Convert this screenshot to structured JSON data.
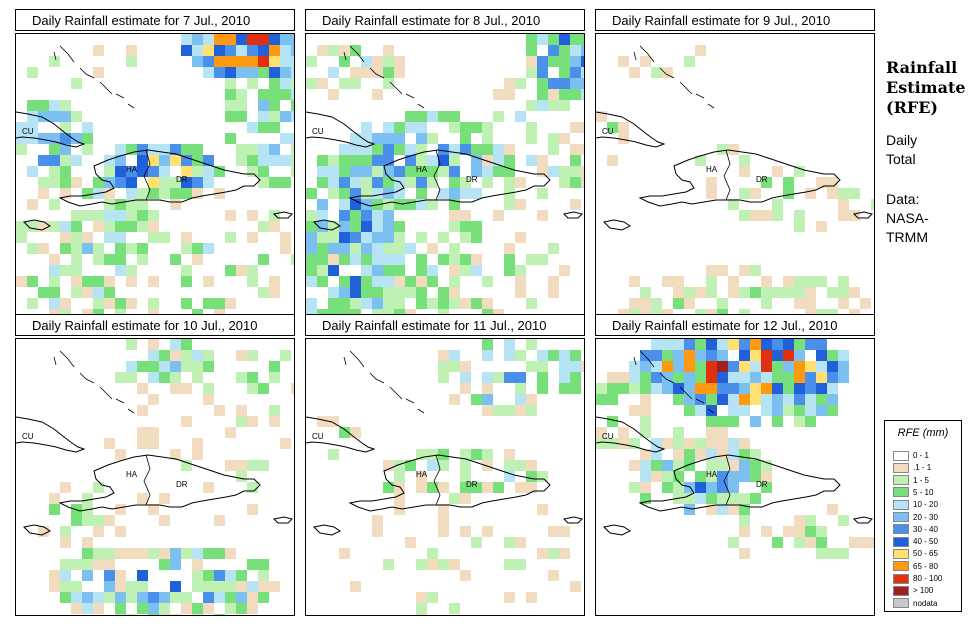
{
  "panels": [
    {
      "title": "Daily Rainfall estimate for  7 Jul., 2010",
      "labels": [
        "CU",
        "HA",
        "DR"
      ],
      "pattern": "d7"
    },
    {
      "title": "Daily Rainfall estimate for  8 Jul., 2010",
      "labels": [
        "CU",
        "HA",
        "DR"
      ],
      "pattern": "d8"
    },
    {
      "title": "Daily Rainfall estimate for  9 Jul., 2010",
      "labels": [
        "CU",
        "HA",
        "DR"
      ],
      "pattern": "d9"
    },
    {
      "title": "Daily Rainfall estimate for  10 Jul., 2010",
      "labels": [
        "CU",
        "HA",
        "DR"
      ],
      "pattern": "d10"
    },
    {
      "title": "Daily Rainfall estimate for  11 Jul., 2010",
      "labels": [
        "CU",
        "HA",
        "DR"
      ],
      "pattern": "d11"
    },
    {
      "title": "Daily Rainfall estimate for  12 Jul., 2010",
      "labels": [
        "CU",
        "HA",
        "DR"
      ],
      "pattern": "d12"
    }
  ],
  "sidebar": {
    "title_line1": "Rainfall",
    "title_line2": "Estimate",
    "title_line3": "(RFE)",
    "period_line1": "Daily",
    "period_line2": "Total",
    "data_line1": "Data:",
    "data_line2": "NASA-",
    "data_line3": "TRMM"
  },
  "legend": {
    "title": "RFE (mm)",
    "items": [
      {
        "label": "0 - 1",
        "color": "#ffffff"
      },
      {
        "label": ".1 - 1",
        "color": "#f2dcc0"
      },
      {
        "label": "1 - 5",
        "color": "#bff0b4"
      },
      {
        "label": "5 - 10",
        "color": "#78e07a"
      },
      {
        "label": "10 - 20",
        "color": "#b6e4f4"
      },
      {
        "label": "20 - 30",
        "color": "#7cc0f2"
      },
      {
        "label": "30 - 40",
        "color": "#4a90ea"
      },
      {
        "label": "40 - 50",
        "color": "#2060d8"
      },
      {
        "label": "50 - 65",
        "color": "#ffe070"
      },
      {
        "label": "65 - 80",
        "color": "#ff9a10"
      },
      {
        "label": "80 - 100",
        "color": "#e03010"
      },
      {
        "label": "> 100",
        "color": "#a02020"
      },
      {
        "label": "nodata",
        "color": "#c8c8c8"
      }
    ]
  }
}
